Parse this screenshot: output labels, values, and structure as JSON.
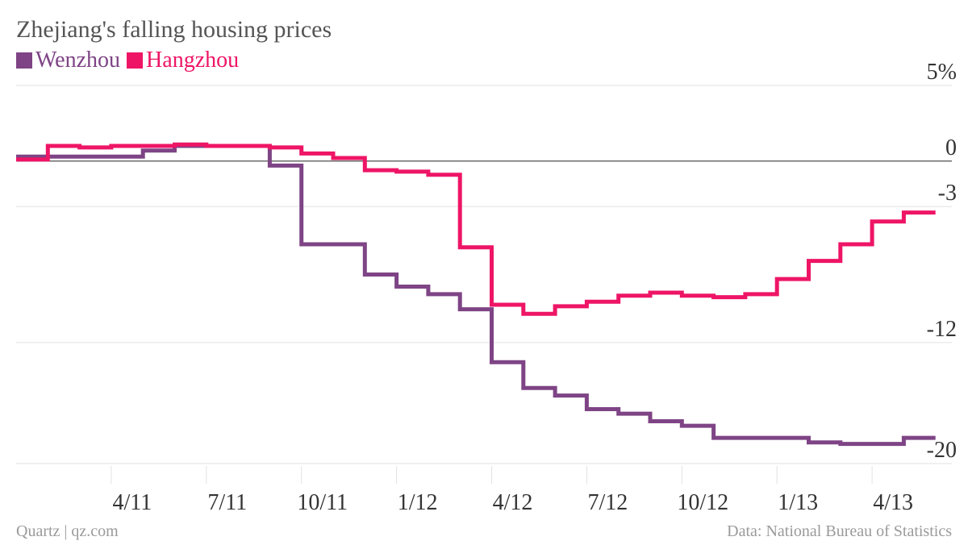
{
  "chart_data": {
    "type": "line",
    "title": "Zhejiang's falling housing prices",
    "xlabel": "",
    "ylabel": "",
    "x": [
      "1/11",
      "2/11",
      "3/11",
      "4/11",
      "5/11",
      "6/11",
      "7/11",
      "8/11",
      "9/11",
      "10/11",
      "11/11",
      "12/11",
      "1/12",
      "2/12",
      "3/12",
      "4/12",
      "5/12",
      "6/12",
      "7/12",
      "8/12",
      "9/12",
      "10/12",
      "11/12",
      "12/12",
      "1/13",
      "2/13",
      "3/13",
      "4/13",
      "5/13"
    ],
    "x_ticks": [
      "4/11",
      "7/11",
      "10/11",
      "1/12",
      "4/12",
      "7/12",
      "10/12",
      "1/13",
      "4/13"
    ],
    "y_ticks": [
      {
        "value": 5,
        "label": "5%"
      },
      {
        "value": 0,
        "label": "0"
      },
      {
        "value": -3,
        "label": "-3"
      },
      {
        "value": -12,
        "label": "-12"
      },
      {
        "value": -20,
        "label": "-20"
      }
    ],
    "ylim": [
      -20,
      5
    ],
    "grid": "horizontal",
    "zero_line": true,
    "series": [
      {
        "name": "Wenzhou",
        "color": "#7e4485",
        "values": [
          0.3,
          0.3,
          0.3,
          0.3,
          0.7,
          1.0,
          1.0,
          1.0,
          -0.3,
          -5.5,
          -5.5,
          -7.5,
          -8.3,
          -8.8,
          -9.8,
          -13.3,
          -15.0,
          -15.5,
          -16.4,
          -16.7,
          -17.2,
          -17.5,
          -18.3,
          -18.3,
          -18.3,
          -18.6,
          -18.7,
          -18.7,
          -18.3
        ]
      },
      {
        "name": "Hangzhou",
        "color": "#ee1566",
        "values": [
          0.1,
          1.0,
          0.9,
          1.0,
          1.0,
          1.1,
          1.0,
          1.0,
          0.9,
          0.5,
          0.2,
          -0.6,
          -0.7,
          -0.9,
          -5.7,
          -9.5,
          -10.1,
          -9.6,
          -9.3,
          -8.9,
          -8.7,
          -8.9,
          -9.0,
          -8.8,
          -7.8,
          -6.6,
          -5.5,
          -4.0,
          -3.4
        ]
      }
    ]
  },
  "legend": [
    {
      "name": "Wenzhou",
      "color": "#7e4485"
    },
    {
      "name": "Hangzhou",
      "color": "#ee1566"
    }
  ],
  "footer": {
    "source_left": "Quartz | qz.com",
    "source_right": "Data: National Bureau of Statistics"
  }
}
